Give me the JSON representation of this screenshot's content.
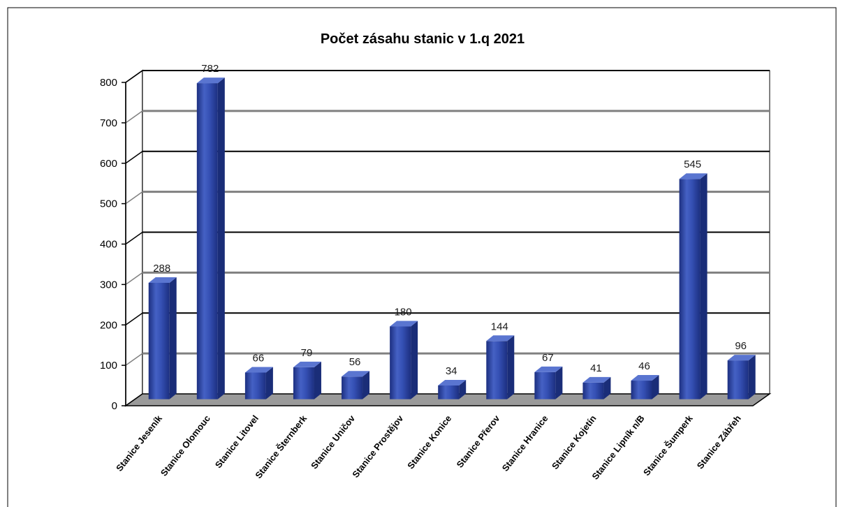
{
  "chart_data": {
    "type": "bar",
    "title": "Počet zásahu stanic v 1.q 2021",
    "xlabel": "",
    "ylabel": "",
    "ylim": [
      0,
      800
    ],
    "yticks": [
      "0",
      "100",
      "200",
      "300",
      "400",
      "500",
      "600",
      "700",
      "800"
    ],
    "categories": [
      "Stanice Jeseník",
      "Stanice Olomouc",
      "Stanice Litovel",
      "Stanice Šternberk",
      "Stanice Uničov",
      "Stanice Prostějov",
      "Stanice Konice",
      "Stanice Přerov",
      "Stanice Hranice",
      "Stanice Kojetín",
      "Stanice Lipník n/B",
      "Stanice Šumperk",
      "Stanice Zábřeh"
    ],
    "values": [
      288,
      782,
      66,
      79,
      56,
      180,
      34,
      144,
      67,
      41,
      46,
      545,
      96
    ],
    "data_labels": [
      "288",
      "782",
      "66",
      "79",
      "56",
      "180",
      "34",
      "144",
      "67",
      "41",
      "46",
      "545",
      "96"
    ],
    "grid": true,
    "legend": "none",
    "colors": {
      "bar": "#2b46a8",
      "bar_dark": "#1a2d78",
      "bar_light": "#5a75d0",
      "floor": "#9a9a9a",
      "wall": "#ffffff",
      "grid_primary": "#000000",
      "grid_secondary": "#808080"
    }
  }
}
